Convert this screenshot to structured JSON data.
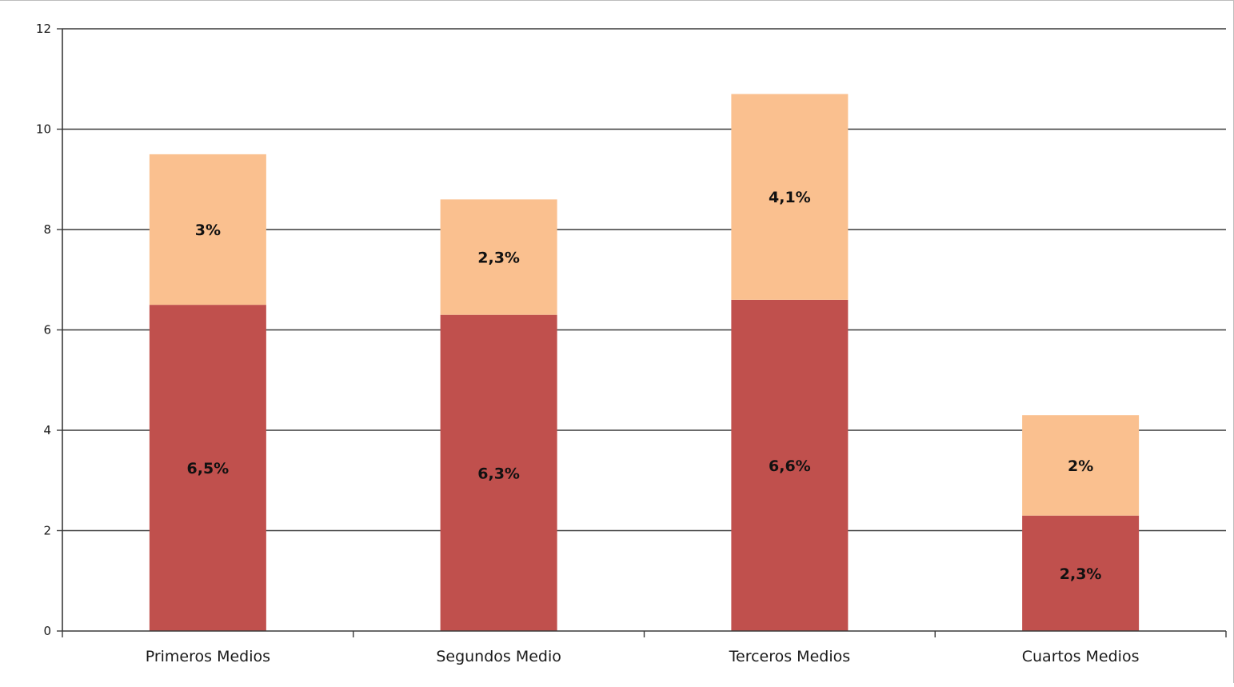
{
  "chart_data": {
    "type": "bar",
    "stacked": true,
    "categories": [
      "Primeros Medios",
      "Segundos Medio",
      "Terceros Medios",
      "Cuartos Medios"
    ],
    "series": [
      {
        "values": [
          6.5,
          6.3,
          6.6,
          2.3
        ],
        "labels": [
          "6,5%",
          "6,3%",
          "6,6%",
          "2,3%"
        ],
        "color": "#c0504d"
      },
      {
        "values": [
          3,
          2.3,
          4.1,
          2
        ],
        "labels": [
          "3%",
          "2,3%",
          "4,1%",
          "2%"
        ],
        "color": "#fac08f"
      }
    ],
    "ylim": [
      0,
      12
    ],
    "yticks": [
      "0",
      "2",
      "4",
      "6",
      "8",
      "10",
      "12"
    ],
    "ytick_values": [
      0,
      2,
      4,
      6,
      8,
      10,
      12
    ],
    "grid": true,
    "legend": "none",
    "xlabel": "",
    "ylabel": "",
    "title": ""
  }
}
